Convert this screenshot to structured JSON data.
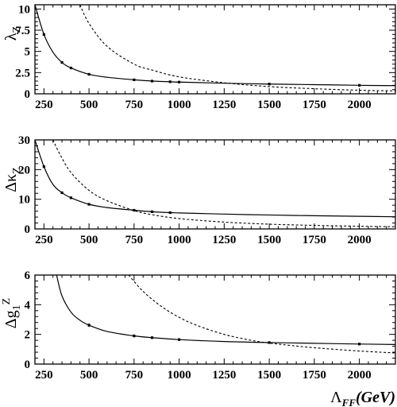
{
  "chart_data": [
    {
      "type": "line",
      "ylabel": "λ_Z",
      "xlim": [
        200,
        2200
      ],
      "ylim": [
        0,
        10.5
      ],
      "x_ticks": [
        250,
        500,
        750,
        1000,
        1250,
        1500,
        1750,
        2000
      ],
      "y_ticks": [
        0,
        2.5,
        5,
        7.5,
        10
      ],
      "y_tick_labels": [
        "0",
        "2.5",
        "5",
        "7.5",
        "10"
      ],
      "series": [
        {
          "style": "solid",
          "x": [
            200,
            250,
            300,
            350,
            400,
            500,
            600,
            750,
            850,
            950,
            1000,
            1250,
            1500,
            1750,
            2000,
            2200
          ],
          "y": [
            10.5,
            7.0,
            4.9,
            3.7,
            3.05,
            2.3,
            1.95,
            1.65,
            1.5,
            1.42,
            1.38,
            1.25,
            1.15,
            1.08,
            1.0,
            0.96
          ]
        },
        {
          "style": "dashed",
          "x": [
            450,
            500,
            600,
            750,
            850,
            1000,
            1250,
            1500,
            1750,
            2000,
            2200
          ],
          "y": [
            10.5,
            8.3,
            5.6,
            3.5,
            2.8,
            2.0,
            1.3,
            0.85,
            0.6,
            0.42,
            0.34
          ]
        }
      ],
      "points": {
        "x": [
          250,
          350,
          400,
          500,
          750,
          850,
          950,
          1000,
          1500,
          2000
        ],
        "y": [
          7.0,
          3.7,
          3.05,
          2.3,
          1.65,
          1.5,
          1.42,
          1.38,
          1.15,
          1.0
        ],
        "err": [
          0.15,
          0.12,
          0.1,
          0.08,
          0.07,
          0.06,
          0.06,
          0.06,
          0.08,
          0.12
        ]
      }
    },
    {
      "type": "line",
      "ylabel": "Δκ_Z",
      "xlim": [
        200,
        2200
      ],
      "ylim": [
        0,
        30
      ],
      "x_ticks": [
        250,
        500,
        750,
        1000,
        1250,
        1500,
        1750,
        2000
      ],
      "y_ticks": [
        0,
        10,
        20,
        30
      ],
      "y_tick_labels": [
        "0",
        "10",
        "20",
        "30"
      ],
      "series": [
        {
          "style": "solid",
          "x": [
            200,
            250,
            300,
            350,
            400,
            500,
            600,
            750,
            850,
            950,
            1000,
            1250,
            1500,
            1750,
            2000,
            2200
          ],
          "y": [
            30,
            21.0,
            15.0,
            12.2,
            10.5,
            8.3,
            7.2,
            6.3,
            5.8,
            5.5,
            5.4,
            5.0,
            4.7,
            4.45,
            4.25,
            4.1
          ]
        },
        {
          "style": "dashed",
          "x": [
            300,
            340,
            400,
            500,
            600,
            750,
            850,
            1000,
            1250,
            1500,
            1750,
            2000,
            2200
          ],
          "y": [
            30,
            25.0,
            19.0,
            13.0,
            9.5,
            6.2,
            4.8,
            3.5,
            2.3,
            1.6,
            1.2,
            0.9,
            0.75
          ]
        }
      ],
      "points": {
        "x": [
          250,
          350,
          400,
          500,
          750,
          850,
          950
        ],
        "y": [
          21.0,
          12.2,
          10.5,
          8.3,
          6.3,
          5.8,
          5.5
        ],
        "err": [
          0.4,
          0.3,
          0.25,
          0.2,
          0.2,
          0.2,
          0.2
        ]
      }
    },
    {
      "type": "line",
      "ylabel": "Δg_1^Z",
      "xlim": [
        200,
        2200
      ],
      "ylim": [
        0,
        6
      ],
      "x_ticks": [
        250,
        500,
        750,
        1000,
        1250,
        1500,
        1750,
        2000
      ],
      "y_ticks": [
        0,
        2,
        4,
        6
      ],
      "y_tick_labels": [
        "0",
        "2",
        "4",
        "6"
      ],
      "xlabel": "Λ_FF(GeV)",
      "series": [
        {
          "style": "solid",
          "x": [
            320,
            350,
            400,
            450,
            500,
            600,
            750,
            850,
            1000,
            1250,
            1500,
            1750,
            2000,
            2200
          ],
          "y": [
            6.0,
            4.6,
            3.5,
            2.95,
            2.62,
            2.2,
            1.9,
            1.78,
            1.65,
            1.52,
            1.45,
            1.4,
            1.35,
            1.32
          ]
        },
        {
          "style": "dashed",
          "x": [
            720,
            800,
            900,
            1000,
            1100,
            1250,
            1400,
            1500,
            1600,
            1750,
            2000,
            2200
          ],
          "y": [
            6.0,
            4.9,
            3.9,
            3.15,
            2.6,
            2.0,
            1.6,
            1.42,
            1.28,
            1.1,
            0.88,
            0.75
          ]
        }
      ],
      "points": {
        "x": [
          500,
          750,
          850,
          1000,
          1500,
          2000
        ],
        "y": [
          2.62,
          1.9,
          1.78,
          1.65,
          1.45,
          1.35
        ],
        "err": [
          0.12,
          0.1,
          0.09,
          0.08,
          0.07,
          0.07
        ]
      }
    }
  ]
}
